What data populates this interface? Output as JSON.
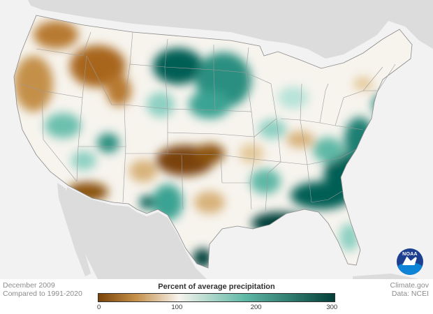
{
  "map": {
    "date": "December 2009",
    "baseline": "Compared to 1991-2020",
    "credit": "Climate.gov",
    "data_source": "Data: NCEI",
    "logo_text": "NOAA"
  },
  "legend": {
    "title": "Percent of average precipitation",
    "ticks": [
      "0",
      "100",
      "200",
      "300"
    ],
    "min": 0,
    "max": 300,
    "colors": {
      "dry_max": "#7a4207",
      "dry": "#c4904a",
      "near_normal": "#f7f4ee",
      "wet": "#5fb8a6",
      "wet_max": "#023f3a"
    }
  },
  "colors": {
    "ocean": "#f2f2f2",
    "land_outside": "#dcdcdc",
    "state_lines": "#9a9a9a"
  }
}
